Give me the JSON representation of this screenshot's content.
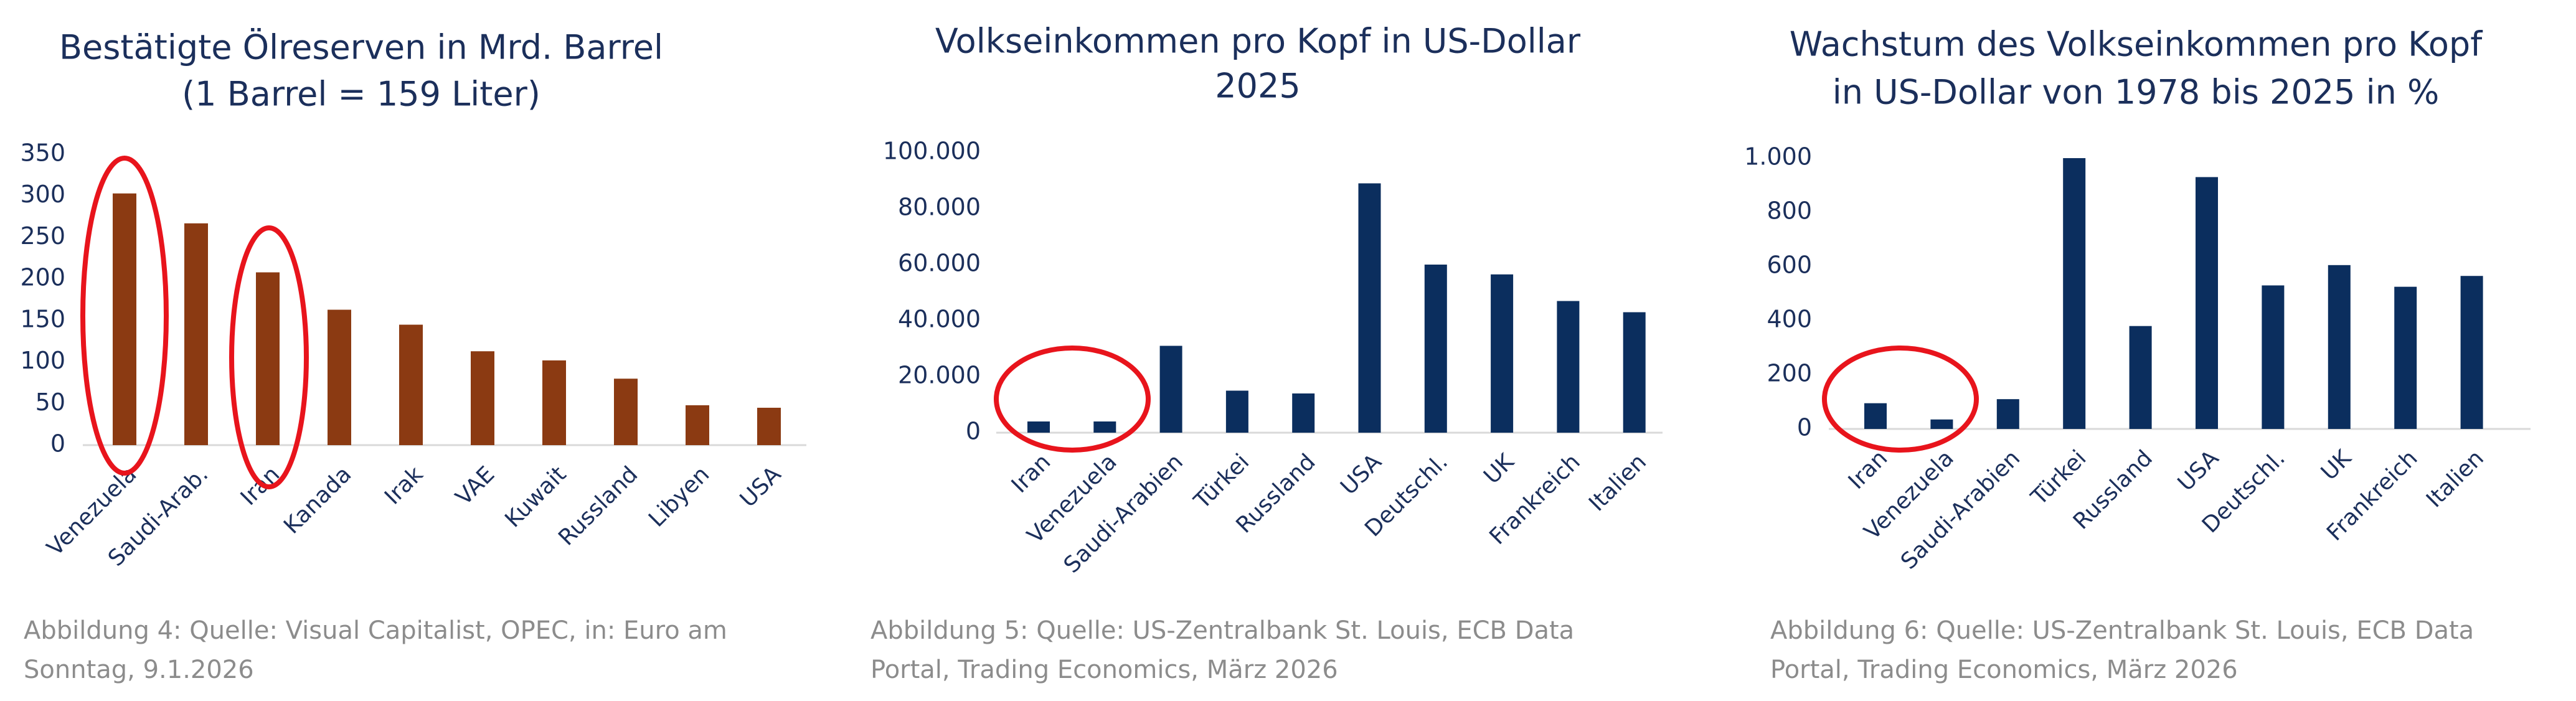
{
  "chart_data": [
    {
      "type": "bar",
      "title": [
        "Bestätigte Ölreserven in Mrd. Barrel",
        "(1 Barrel = 159 Liter)"
      ],
      "categories": [
        "Venezuela",
        "Saudi-Arab.",
        "Iran",
        "Kanada",
        "Irak",
        "VAE",
        "Kuwait",
        "Russland",
        "Libyen",
        "USA"
      ],
      "values": [
        303,
        267,
        208,
        163,
        145,
        113,
        102,
        80,
        48,
        45
      ],
      "color": "#8b3a12",
      "ylim": [
        0,
        350
      ],
      "yticks": [
        0,
        50,
        100,
        150,
        200,
        250,
        300,
        350
      ],
      "caption": [
        "Abbildung 4: Quelle: Visual Capitalist, OPEC, in: Euro am",
        "Sonntag, 9.1.2026"
      ]
    },
    {
      "type": "bar",
      "title": [
        "Volkseinkommen pro Kopf in US-Dollar",
        "2025"
      ],
      "categories": [
        "Iran",
        "Venezuela",
        "Saudi-Arabien",
        "Türkei",
        "Russland",
        "USA",
        "Deutschl.",
        "UK",
        "Frankreich",
        "Italien"
      ],
      "values": [
        4000,
        4000,
        31000,
        15000,
        14000,
        89000,
        60000,
        56500,
        47000,
        43000
      ],
      "color": "#0b2e5e",
      "ylim": [
        0,
        100000
      ],
      "yticks": [
        0,
        {
          "value": 20000,
          "label": "20.000"
        },
        {
          "value": 40000,
          "label": "40.000"
        },
        {
          "value": 60000,
          "label": "60.000"
        },
        {
          "value": 80000,
          "label": "80.000"
        },
        {
          "value": 100000,
          "label": "100.000"
        }
      ],
      "caption": [
        "Abbildung 5: Quelle: US-Zentralbank St. Louis, ECB Data",
        "Portal, Trading Economics, März 2026"
      ]
    },
    {
      "type": "bar",
      "title": [
        "Wachstum des Volkseinkommen pro Kopf",
        "in US-Dollar von 1978 bis 2025 in %"
      ],
      "categories": [
        "Iran",
        "Venezuela",
        "Saudi-Arabien",
        "Türkei",
        "Russland",
        "USA",
        "Deutschl.",
        "UK",
        "Frankreich",
        "Italien"
      ],
      "values": [
        95,
        35,
        110,
        1000,
        380,
        930,
        530,
        605,
        525,
        565
      ],
      "color": "#0b2e5e",
      "ylim": [
        0,
        1000
      ],
      "yticks": [
        0,
        200,
        400,
        600,
        800,
        {
          "value": 1000,
          "label": "1.000"
        }
      ],
      "caption": [
        "Abbildung 6: Quelle: US-Zentralbank St. Louis, ECB Data",
        "Portal, Trading Economics, März 2026"
      ]
    }
  ]
}
